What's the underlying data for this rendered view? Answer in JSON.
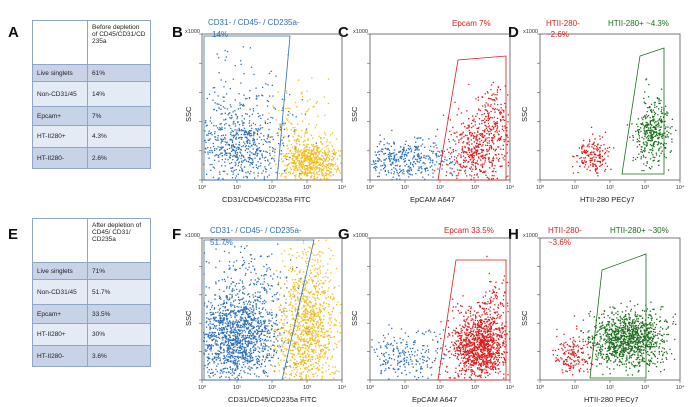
{
  "panels": {
    "A": "A",
    "B": "B",
    "C": "C",
    "D": "D",
    "E": "E",
    "F": "F",
    "G": "G",
    "H": "H"
  },
  "table_top": {
    "header": "Before depletion of CD45/CD31/CD 235a",
    "rows": [
      {
        "label": "Live singlets",
        "value": "61%"
      },
      {
        "label": "Non-CD31/45",
        "value": "14%"
      },
      {
        "label": "Epcam+",
        "value": "7%"
      },
      {
        "label": "HT-II280+",
        "value": "4.3%"
      },
      {
        "label": "HT-II280-",
        "value": "2.6%"
      }
    ]
  },
  "table_bottom": {
    "header": "After depletion of CD45/ CD31/ CD235a",
    "rows": [
      {
        "label": "Live singlets",
        "value": "71%"
      },
      {
        "label": "Non-CD31/45",
        "value": "51.7%"
      },
      {
        "label": "Epcam+",
        "value": "33.5%"
      },
      {
        "label": "HT-II280+",
        "value": "30%"
      },
      {
        "label": "HT-II280-",
        "value": "3.6%"
      }
    ]
  },
  "plots": {
    "B": {
      "gate": "CD31- / CD45- / CD235a-",
      "gate_pct": "14%",
      "xlabel": "CD31/CD45/CD235a FITC",
      "ylabel": "SSC"
    },
    "C": {
      "gate": "Epcam 7%",
      "xlabel": "EpCAM A647",
      "ylabel": "SSC"
    },
    "D": {
      "gate_neg": "HTII-280-",
      "gate_neg_pct": "~2.6%",
      "gate_pos": "HTII-280+ ~4.3%",
      "xlabel": "HTII-280 PECy7",
      "ylabel": "SSC"
    },
    "F": {
      "gate": "CD31- / CD45- / CD235a-",
      "gate_pct": "51.7%",
      "xlabel": "CD31/CD45/CD235a FITC",
      "ylabel": "SSC"
    },
    "G": {
      "gate": "Epcam 33.5%",
      "xlabel": "EpCAM A647",
      "ylabel": "SSC"
    },
    "H": {
      "gate_neg": "HTII-280-",
      "gate_neg_pct": "~3.6%",
      "gate_pos": "HTII-280+ ~30%",
      "xlabel": "HTII-280 PECy7",
      "ylabel": "SSC"
    }
  },
  "axis": {
    "x_ticks": [
      "10⁰",
      "10¹",
      "10²",
      "10³",
      "10⁴"
    ],
    "y_top": "x1000"
  },
  "colors": {
    "blue": "#2d6fb8",
    "gold": "#f2bc1a",
    "red": "#e01a1a",
    "green": "#1a6e1a"
  }
}
